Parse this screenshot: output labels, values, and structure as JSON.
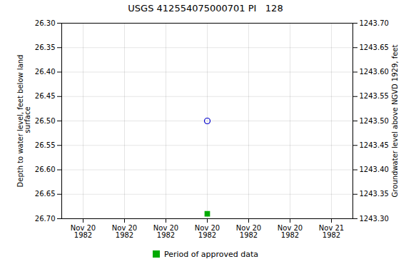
{
  "chart_data": {
    "type": "scatter",
    "title": "USGS 412554075000701 PI   128",
    "ylabel": "Depth to water level, feet below land\n surface",
    "y2label": "Groundwater level above NGVD 1929, feet",
    "categories": [
      "Nov 20\n1982",
      "Nov 20\n1982",
      "Nov 20\n1982",
      "Nov 20\n1982",
      "Nov 20\n1982",
      "Nov 20\n1982",
      "Nov 21\n1982"
    ],
    "series": [
      {
        "color": "#0000cc",
        "marker": "open_circle",
        "values": [
          null,
          null,
          null,
          26.5,
          null,
          null,
          null
        ]
      },
      {
        "name": "Period of approved data",
        "color": "#00aa00",
        "marker": "square",
        "values": [
          null,
          null,
          null,
          26.69,
          null,
          null,
          null
        ]
      }
    ],
    "ylim": [
      26.7,
      26.3
    ],
    "yticks": [
      {
        "value": 26.3,
        "label": "26.30"
      },
      {
        "value": 26.35,
        "label": "26.35"
      },
      {
        "value": 26.4,
        "label": "26.40"
      },
      {
        "value": 26.45,
        "label": "26.45"
      },
      {
        "value": 26.5,
        "label": "26.50"
      },
      {
        "value": 26.55,
        "label": "26.55"
      },
      {
        "value": 26.6,
        "label": "26.60"
      },
      {
        "value": 26.65,
        "label": "26.65"
      },
      {
        "value": 26.7,
        "label": "26.70"
      }
    ],
    "y2lim": [
      1243.3,
      1243.7
    ],
    "y2ticks": [
      {
        "value": 1243.3,
        "label": "1243.30"
      },
      {
        "value": 1243.35,
        "label": "1243.35"
      },
      {
        "value": 1243.4,
        "label": "1243.40"
      },
      {
        "value": 1243.45,
        "label": "1243.45"
      },
      {
        "value": 1243.5,
        "label": "1243.50"
      },
      {
        "value": 1243.55,
        "label": "1243.55"
      },
      {
        "value": 1243.6,
        "label": "1243.60"
      },
      {
        "value": 1243.65,
        "label": "1243.65"
      },
      {
        "value": 1243.7,
        "label": "1243.70"
      }
    ],
    "grid": true,
    "legend": "bottom"
  }
}
